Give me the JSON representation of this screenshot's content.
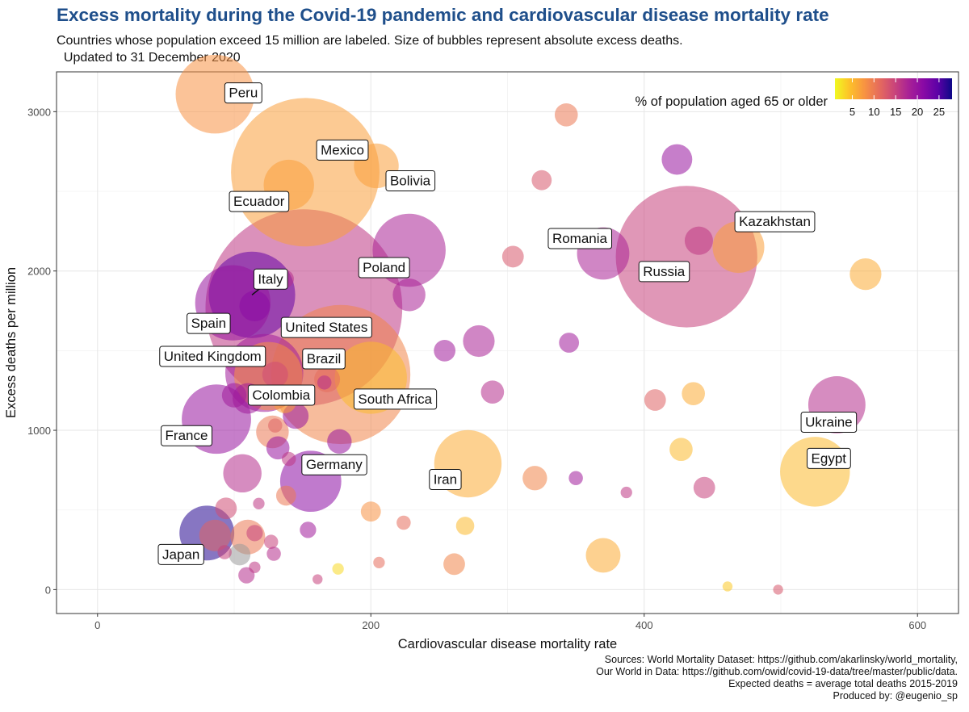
{
  "title": "Excess mortality during the Covid-19 pandemic and cardiovascular disease mortality rate",
  "subtitle": "Countries whose population exceed 15 million are labeled. Size of bubbles represent absolute excess deaths.\n  Updated to 31 December 2020",
  "caption_lines": [
    "Sources: World Mortality Dataset: https://github.com/akarlinsky/world_mortality,",
    "Our World in Data: https://github.com/owid/covid-19-data/tree/master/public/data.",
    "Expected deaths = average total deaths 2015-2019",
    "Produced by: @eugenio_sp"
  ],
  "chart_data": {
    "type": "scatter",
    "xlabel": "Cardiovascular disease mortality rate",
    "ylabel": "Excess deaths per million",
    "xlim": [
      -30,
      630
    ],
    "ylim": [
      -150,
      3250
    ],
    "xticks": [
      0,
      200,
      400,
      600
    ],
    "yticks": [
      0,
      1000,
      2000,
      3000
    ],
    "grid": true,
    "color_legend": {
      "title": "% of population aged 65 or older",
      "ticks": [
        5,
        10,
        15,
        20,
        25
      ],
      "range": [
        1,
        28
      ],
      "placement": "top-right"
    },
    "points": [
      {
        "label": "Peru",
        "x": 86,
        "y": 3110,
        "size": 93000,
        "age65": 8
      },
      {
        "label": "Mexico",
        "x": 152,
        "y": 2620,
        "size": 330000,
        "age65": 7
      },
      {
        "label": "Ecuador",
        "x": 140,
        "y": 2540,
        "size": 38000,
        "age65": 7
      },
      {
        "label": "Bolivia",
        "x": 204,
        "y": 2660,
        "size": 30000,
        "age65": 7
      },
      {
        "label": "Italy",
        "x": 113,
        "y": 1850,
        "size": 112000,
        "age65": 24
      },
      {
        "label": "Spain",
        "x": 99,
        "y": 1800,
        "size": 85000,
        "age65": 20
      },
      {
        "label": "United States",
        "x": 151,
        "y": 1770,
        "size": 580000,
        "age65": 16
      },
      {
        "label": "Poland",
        "x": 228,
        "y": 2130,
        "size": 80000,
        "age65": 18
      },
      {
        "label": "United Kingdom",
        "x": 122,
        "y": 1360,
        "size": 91000,
        "age65": 19
      },
      {
        "label": "Brazil",
        "x": 178,
        "y": 1350,
        "size": 290000,
        "age65": 9
      },
      {
        "label": "Colombia",
        "x": 125,
        "y": 1340,
        "size": 70000,
        "age65": 8
      },
      {
        "label": "South Africa",
        "x": 200,
        "y": 1330,
        "size": 78000,
        "age65": 5
      },
      {
        "label": "France",
        "x": 87,
        "y": 1070,
        "size": 72000,
        "age65": 20
      },
      {
        "label": "Germany",
        "x": 156,
        "y": 680,
        "size": 56000,
        "age65": 21
      },
      {
        "label": "Iran",
        "x": 271,
        "y": 790,
        "size": 68000,
        "age65": 6
      },
      {
        "label": "Japan",
        "x": 80,
        "y": 355,
        "size": 45000,
        "age65": 27
      },
      {
        "label": "Romania",
        "x": 370,
        "y": 2110,
        "size": 41000,
        "age65": 18
      },
      {
        "label": "Russia",
        "x": 431,
        "y": 2090,
        "size": 300000,
        "age65": 15
      },
      {
        "label": "Kazakhstan",
        "x": 469,
        "y": 2150,
        "size": 40000,
        "age65": 7
      },
      {
        "label": "Ukraine",
        "x": 541,
        "y": 1160,
        "size": 49000,
        "age65": 17
      },
      {
        "label": "Egypt",
        "x": 525,
        "y": 740,
        "size": 73000,
        "age65": 5
      },
      {
        "label": "",
        "x": 343,
        "y": 2980,
        "size": 8000,
        "age65": 10
      },
      {
        "label": "",
        "x": 424,
        "y": 2700,
        "size": 14000,
        "age65": 20
      },
      {
        "label": "",
        "x": 325,
        "y": 2570,
        "size": 6000,
        "age65": 13
      },
      {
        "label": "",
        "x": 304,
        "y": 2090,
        "size": 7000,
        "age65": 13
      },
      {
        "label": "",
        "x": 440,
        "y": 2190,
        "size": 12000,
        "age65": 16
      },
      {
        "label": "",
        "x": 562,
        "y": 1980,
        "size": 15000,
        "age65": 6
      },
      {
        "label": "",
        "x": 137,
        "y": 1950,
        "size": 5000,
        "age65": 17
      },
      {
        "label": "",
        "x": 115,
        "y": 1780,
        "size": 14000,
        "age65": 21
      },
      {
        "label": "",
        "x": 228,
        "y": 1850,
        "size": 16000,
        "age65": 18
      },
      {
        "label": "",
        "x": 279,
        "y": 1560,
        "size": 15000,
        "age65": 18
      },
      {
        "label": "",
        "x": 254,
        "y": 1500,
        "size": 7000,
        "age65": 19
      },
      {
        "label": "",
        "x": 345,
        "y": 1550,
        "size": 6000,
        "age65": 19
      },
      {
        "label": "",
        "x": 168,
        "y": 1320,
        "size": 10000,
        "age65": 11
      },
      {
        "label": "",
        "x": 166,
        "y": 1300,
        "size": 3000,
        "age65": 17
      },
      {
        "label": "",
        "x": 130,
        "y": 1350,
        "size": 10000,
        "age65": 14
      },
      {
        "label": "",
        "x": 100,
        "y": 1220,
        "size": 9000,
        "age65": 19
      },
      {
        "label": "",
        "x": 110,
        "y": 1200,
        "size": 14000,
        "age65": 19
      },
      {
        "label": "",
        "x": 137,
        "y": 1180,
        "size": 8000,
        "age65": 7
      },
      {
        "label": "",
        "x": 145,
        "y": 1090,
        "size": 10000,
        "age65": 20
      },
      {
        "label": "",
        "x": 289,
        "y": 1240,
        "size": 8000,
        "age65": 17
      },
      {
        "label": "",
        "x": 408,
        "y": 1190,
        "size": 7000,
        "age65": 12
      },
      {
        "label": "",
        "x": 436,
        "y": 1230,
        "size": 8000,
        "age65": 6
      },
      {
        "label": "",
        "x": 128,
        "y": 990,
        "size": 16000,
        "age65": 10
      },
      {
        "label": "",
        "x": 130,
        "y": 1030,
        "size": 3000,
        "age65": 12
      },
      {
        "label": "",
        "x": 132,
        "y": 890,
        "size": 8000,
        "age65": 20
      },
      {
        "label": "",
        "x": 177,
        "y": 930,
        "size": 9000,
        "age65": 20
      },
      {
        "label": "",
        "x": 140,
        "y": 820,
        "size": 3000,
        "age65": 16
      },
      {
        "label": "",
        "x": 427,
        "y": 880,
        "size": 8000,
        "age65": 5
      },
      {
        "label": "",
        "x": 106,
        "y": 730,
        "size": 22000,
        "age65": 17
      },
      {
        "label": "",
        "x": 320,
        "y": 700,
        "size": 9000,
        "age65": 9
      },
      {
        "label": "",
        "x": 350,
        "y": 700,
        "size": 3000,
        "age65": 19
      },
      {
        "label": "",
        "x": 444,
        "y": 640,
        "size": 7000,
        "age65": 15
      },
      {
        "label": "",
        "x": 387,
        "y": 610,
        "size": 2000,
        "age65": 16
      },
      {
        "label": "",
        "x": 138,
        "y": 590,
        "size": 6000,
        "age65": 10
      },
      {
        "label": "",
        "x": 118,
        "y": 540,
        "size": 2000,
        "age65": 16
      },
      {
        "label": "",
        "x": 94,
        "y": 510,
        "size": 7000,
        "age65": 14
      },
      {
        "label": "",
        "x": 200,
        "y": 490,
        "size": 6000,
        "age65": 8
      },
      {
        "label": "",
        "x": 224,
        "y": 420,
        "size": 3000,
        "age65": 11
      },
      {
        "label": "",
        "x": 269,
        "y": 400,
        "size": 5000,
        "age65": 5
      },
      {
        "label": "",
        "x": 154,
        "y": 375,
        "size": 4000,
        "age65": 19
      },
      {
        "label": "",
        "x": 86,
        "y": 340,
        "size": 15000,
        "age65": 12
      },
      {
        "label": "",
        "x": 110,
        "y": 330,
        "size": 18000,
        "age65": 10
      },
      {
        "label": "",
        "x": 115,
        "y": 355,
        "size": 4000,
        "age65": 15
      },
      {
        "label": "",
        "x": 127,
        "y": 300,
        "size": 3000,
        "age65": 15
      },
      {
        "label": "",
        "x": 93,
        "y": 235,
        "size": 3000,
        "age65": 15
      },
      {
        "label": "",
        "x": 104,
        "y": 220,
        "size": 7000,
        "age65": null
      },
      {
        "label": "",
        "x": 129,
        "y": 225,
        "size": 3000,
        "age65": 17
      },
      {
        "label": "",
        "x": 370,
        "y": 215,
        "size": 18000,
        "age65": 6
      },
      {
        "label": "",
        "x": 206,
        "y": 170,
        "size": 2000,
        "age65": 11
      },
      {
        "label": "",
        "x": 261,
        "y": 160,
        "size": 7000,
        "age65": 9
      },
      {
        "label": "",
        "x": 176,
        "y": 130,
        "size": 2000,
        "age65": 3
      },
      {
        "label": "",
        "x": 115,
        "y": 140,
        "size": 2000,
        "age65": 16
      },
      {
        "label": "",
        "x": 109,
        "y": 90,
        "size": 4000,
        "age65": 17
      },
      {
        "label": "",
        "x": 161,
        "y": 65,
        "size": 1500,
        "age65": 15
      },
      {
        "label": "",
        "x": 461,
        "y": 20,
        "size": 1500,
        "age65": 4
      },
      {
        "label": "",
        "x": 498,
        "y": 0,
        "size": 1500,
        "age65": 13
      }
    ]
  }
}
